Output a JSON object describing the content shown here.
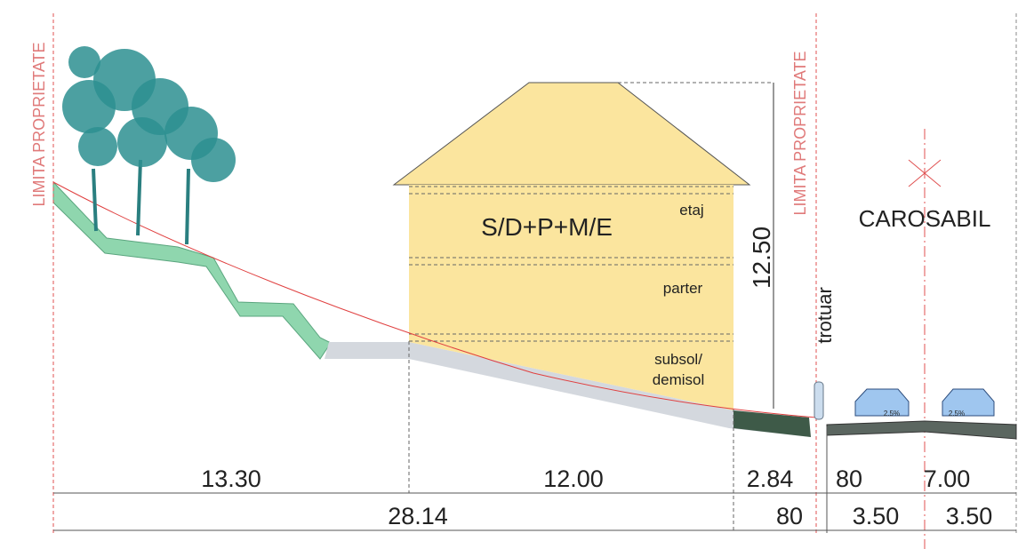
{
  "property_limits": [
    "LIMITA PROPRIETATE",
    "LIMITA PROPRIETATE"
  ],
  "building": {
    "label": "S/D+P+M/E",
    "levels": [
      "etaj",
      "parter"
    ],
    "basement": [
      "subsol/",
      "demisol"
    ],
    "height": "12.50"
  },
  "sidewalk": "trotuar",
  "roadway": "CAROSABIL",
  "slopes": [
    "2.5%",
    "2.5%"
  ],
  "dimensions": {
    "top": [
      "13.30",
      "12.00",
      "2.84",
      "80",
      "7.00"
    ],
    "bottom": [
      "28.14",
      "80",
      "3.50",
      "3.50"
    ]
  }
}
